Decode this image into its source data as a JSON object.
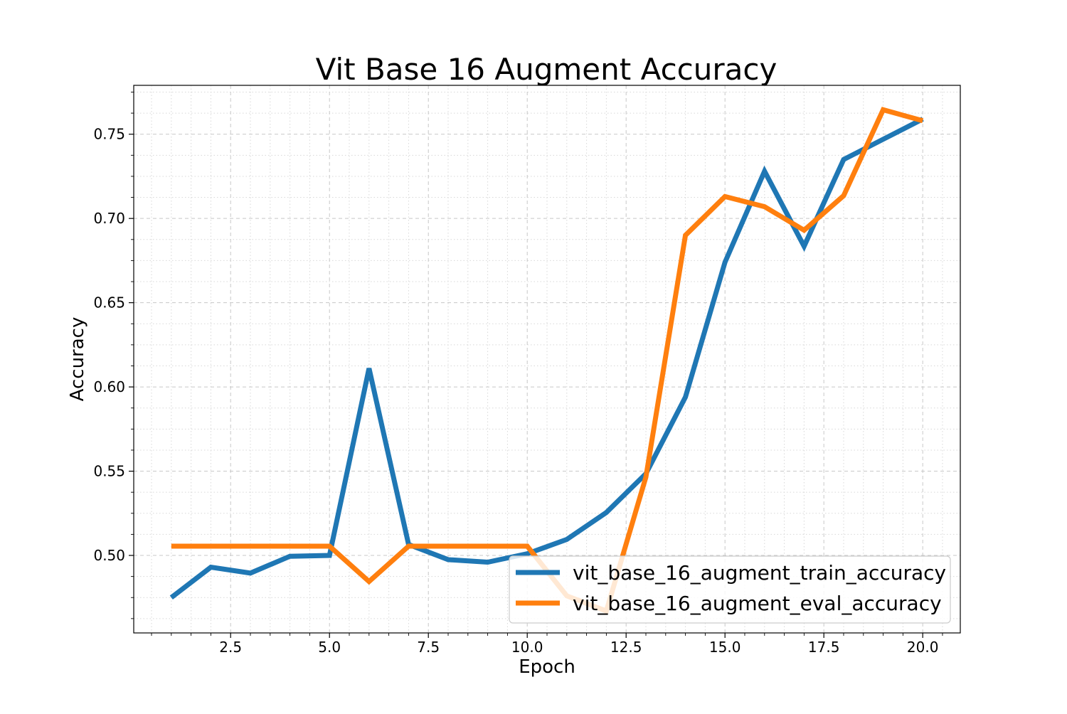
{
  "chart_data": {
    "type": "line",
    "title": "Vit Base 16 Augment Accuracy",
    "xlabel": "Epoch",
    "ylabel": "Accuracy",
    "xlim": [
      0.05,
      20.95
    ],
    "ylim": [
      0.454,
      0.779
    ],
    "x_major_ticks": [
      2.5,
      5.0,
      7.5,
      10.0,
      12.5,
      15.0,
      17.5,
      20.0
    ],
    "x_tick_labels": [
      "2.5",
      "5.0",
      "7.5",
      "10.0",
      "12.5",
      "15.0",
      "17.5",
      "20.0"
    ],
    "x_minor_step": 0.5,
    "y_major_ticks": [
      0.5,
      0.55,
      0.6,
      0.65,
      0.7,
      0.75
    ],
    "y_tick_labels": [
      "0.50",
      "0.55",
      "0.60",
      "0.65",
      "0.70",
      "0.75"
    ],
    "y_minor_step": 0.0125,
    "grid": true,
    "legend_position": "lower-right",
    "x": [
      1,
      2,
      3,
      4,
      5,
      6,
      7,
      8,
      9,
      10,
      11,
      12,
      13,
      14,
      15,
      16,
      17,
      18,
      19,
      20
    ],
    "series": [
      {
        "name": "vit_base_16_augment_train_accuracy",
        "color": "#1f77b4",
        "values": [
          0.475,
          0.493,
          0.4895,
          0.4995,
          0.5,
          0.611,
          0.5065,
          0.4975,
          0.496,
          0.501,
          0.5095,
          0.5255,
          0.5485,
          0.594,
          0.674,
          0.728,
          0.6835,
          0.735,
          0.747,
          0.759
        ]
      },
      {
        "name": "vit_base_16_augment_eval_accuracy",
        "color": "#ff7f0e",
        "values": [
          0.5055,
          0.5055,
          0.5055,
          0.5055,
          0.5055,
          0.4845,
          0.5055,
          0.5055,
          0.5055,
          0.5055,
          0.476,
          0.467,
          0.5465,
          0.69,
          0.713,
          0.707,
          0.693,
          0.7135,
          0.7645,
          0.758
        ]
      }
    ]
  }
}
